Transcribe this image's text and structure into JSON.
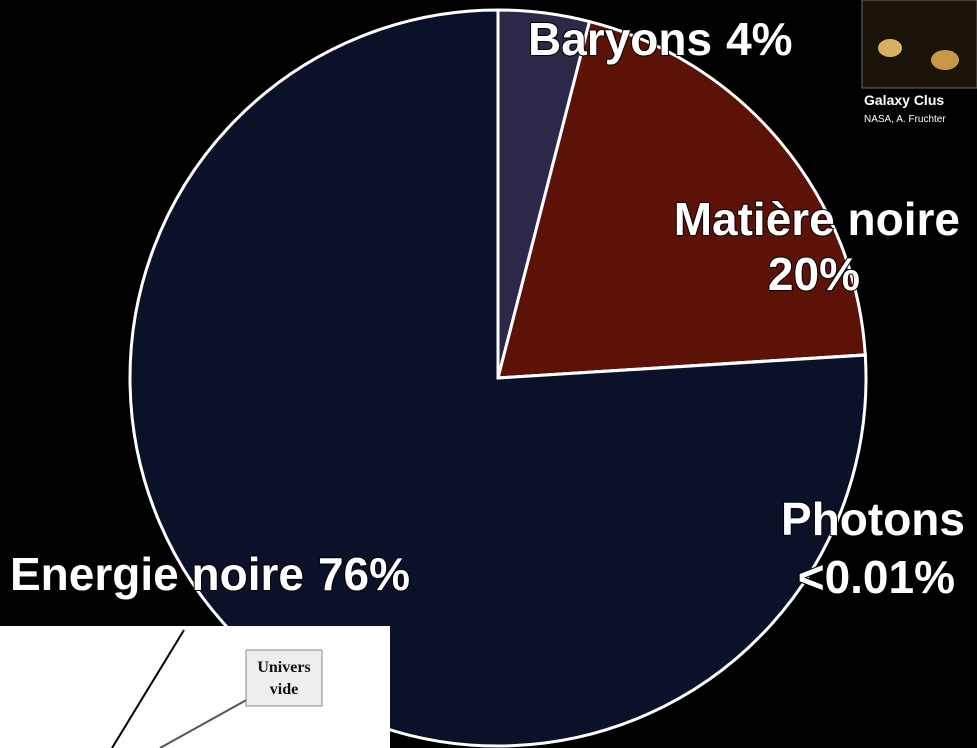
{
  "chart_data": {
    "type": "pie",
    "categories": [
      "Baryons",
      "Matière noire",
      "Photons",
      "Energie noire"
    ],
    "values": [
      4,
      20,
      0.01,
      76
    ],
    "value_labels": [
      "4%",
      "20%",
      "<0.01%",
      "76%"
    ],
    "colors": [
      "#2b2848",
      "#5c1206",
      "#2f78c4",
      "#0a1128"
    ],
    "annotations": [
      "Galaxy Clus",
      "NASA, A. Fruchter",
      "Univers",
      "vide"
    ]
  }
}
